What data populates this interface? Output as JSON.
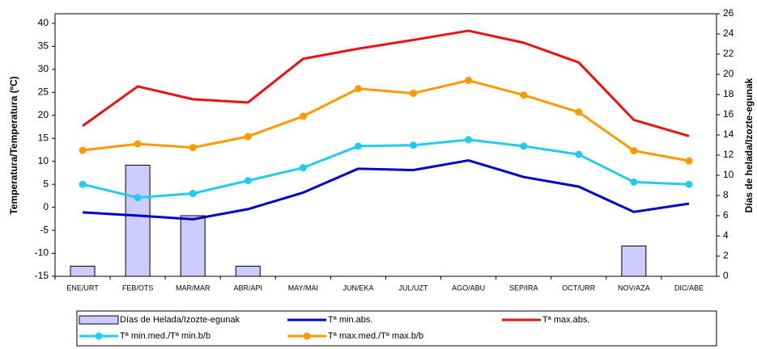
{
  "chart_data": {
    "type": "combo",
    "categories": [
      "ENE/URT",
      "FEB/OTS",
      "MAR/MAR",
      "ABR/API",
      "MAY/MAI",
      "JUN/EKA",
      "JUL/UZT",
      "AGO/ABU",
      "SEP/IRA",
      "OCT/URR",
      "NOV/AZA",
      "DIC/ABE"
    ],
    "ylabel": "Temperatura/Temperatura (ºC)",
    "y2label": "Días de helada/Izozte-egunak",
    "ylim": [
      -15,
      42.1
    ],
    "yticks": [
      -15,
      -10,
      -5,
      0,
      5,
      10,
      15,
      20,
      25,
      30,
      35,
      40
    ],
    "y2lim": [
      0,
      26
    ],
    "y2ticks": [
      0,
      2,
      4,
      6,
      8,
      10,
      12,
      14,
      16,
      18,
      20,
      22,
      24,
      26
    ],
    "grid": false,
    "series": [
      {
        "name": "Días de Helada/Izozte-egunak",
        "type": "bar",
        "axis": "y2",
        "color": "#ccccff",
        "values": [
          1,
          11,
          6,
          1,
          0,
          0,
          0,
          0,
          0,
          0,
          3,
          0
        ]
      },
      {
        "name": "Tª min.abs.",
        "type": "line",
        "marker": false,
        "color": "#0000cc",
        "values": [
          -1.1,
          -1.8,
          -2.6,
          -0.4,
          3.2,
          8.4,
          8.1,
          10.2,
          6.6,
          4.5,
          -1,
          0.8
        ]
      },
      {
        "name": "Tª max.abs.",
        "type": "line",
        "marker": false,
        "color": "#ee1111",
        "values": [
          17.7,
          26.3,
          23.5,
          22.8,
          32.3,
          34.5,
          36.4,
          38.4,
          35.8,
          31.5,
          19,
          15.5
        ]
      },
      {
        "name": "Tª min.med./Tª min.b/b",
        "type": "line",
        "marker": true,
        "color": "#22ccee",
        "values": [
          5,
          2.1,
          3,
          5.8,
          8.6,
          13.3,
          13.5,
          14.7,
          13.3,
          11.5,
          5.5,
          5
        ]
      },
      {
        "name": "Tª max.med./Tª max.b/b",
        "type": "line",
        "marker": true,
        "color": "#ff9900",
        "values": [
          12.4,
          13.8,
          13,
          15.4,
          19.8,
          25.8,
          24.8,
          27.6,
          24.4,
          20.7,
          12.3,
          10.1
        ]
      }
    ]
  }
}
